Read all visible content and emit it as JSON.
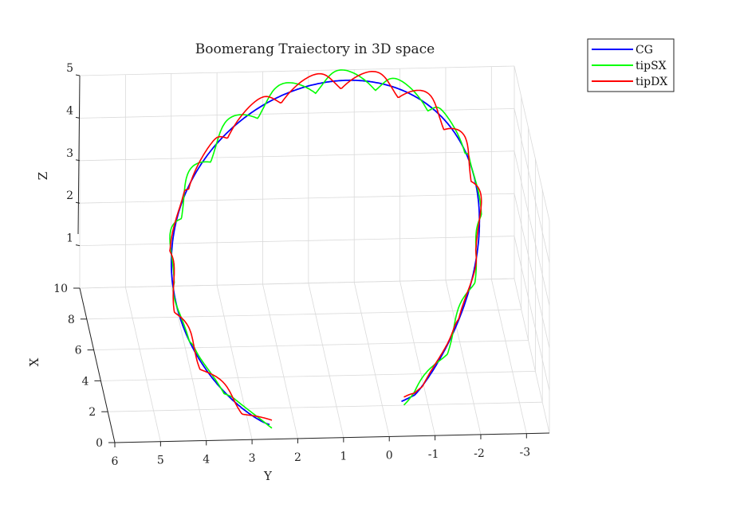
{
  "chart_data": {
    "type": "line",
    "title": "Boomerang Traiectory in 3D space",
    "xlabel": "X",
    "ylabel": "Y",
    "zlabel": "Z",
    "xlim": [
      0,
      10
    ],
    "ylim": [
      -3,
      6
    ],
    "zlim": [
      0,
      5
    ],
    "x_ticks": [
      "0",
      "2",
      "4",
      "6",
      "8",
      "10"
    ],
    "y_ticks": [
      "6",
      "5",
      "4",
      "3",
      "2",
      "1",
      "0",
      "-1",
      "-2",
      "-3"
    ],
    "z_ticks": [
      "1",
      "2",
      "3",
      "4",
      "5"
    ],
    "grid": true,
    "legend_position": "top-right outside",
    "series": [
      {
        "name": "CG",
        "color": "#0000ff"
      },
      {
        "name": "tipSX",
        "color": "#00ff00"
      },
      {
        "name": "tipDX",
        "color": "#ff0000"
      }
    ],
    "series_shape": "Open loop: start near X=0.5, Y=3.3, Z≈0; rising to apex Z≈4.9 near Y≈0.5, X≈10; descending to end near X≈1.5, Y≈0, Z≈0. The tipSX and tipDX curves oscillate around CG with ~13 arches each."
  }
}
